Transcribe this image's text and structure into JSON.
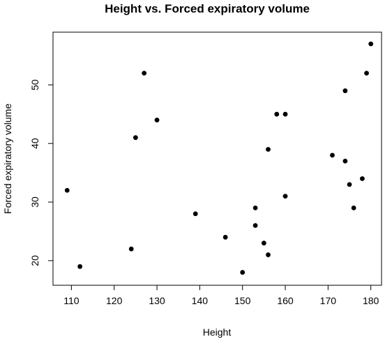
{
  "chart_data": {
    "type": "scatter",
    "title": "Height vs. Forced expiratory volume",
    "xlabel": "Height",
    "ylabel": "Forced expiratory volume",
    "xlim": [
      105.7,
      182.5
    ],
    "ylim": [
      15.8,
      59.0
    ],
    "xticks": [
      110,
      120,
      130,
      140,
      150,
      160,
      170,
      180
    ],
    "yticks": [
      20,
      30,
      40,
      50
    ],
    "grid": false,
    "marker_color": "#000000",
    "points": [
      {
        "x": 109,
        "y": 32
      },
      {
        "x": 112,
        "y": 19
      },
      {
        "x": 124,
        "y": 22
      },
      {
        "x": 125,
        "y": 41
      },
      {
        "x": 127,
        "y": 52
      },
      {
        "x": 130,
        "y": 44
      },
      {
        "x": 139,
        "y": 28
      },
      {
        "x": 146,
        "y": 24
      },
      {
        "x": 150,
        "y": 18
      },
      {
        "x": 153,
        "y": 29
      },
      {
        "x": 153,
        "y": 26
      },
      {
        "x": 155,
        "y": 23
      },
      {
        "x": 156,
        "y": 21
      },
      {
        "x": 156,
        "y": 39
      },
      {
        "x": 158,
        "y": 45
      },
      {
        "x": 160,
        "y": 45
      },
      {
        "x": 160,
        "y": 31
      },
      {
        "x": 171,
        "y": 38
      },
      {
        "x": 174,
        "y": 49
      },
      {
        "x": 174,
        "y": 37
      },
      {
        "x": 175,
        "y": 33
      },
      {
        "x": 176,
        "y": 29
      },
      {
        "x": 178,
        "y": 34
      },
      {
        "x": 179,
        "y": 52
      },
      {
        "x": 180,
        "y": 57
      }
    ]
  }
}
